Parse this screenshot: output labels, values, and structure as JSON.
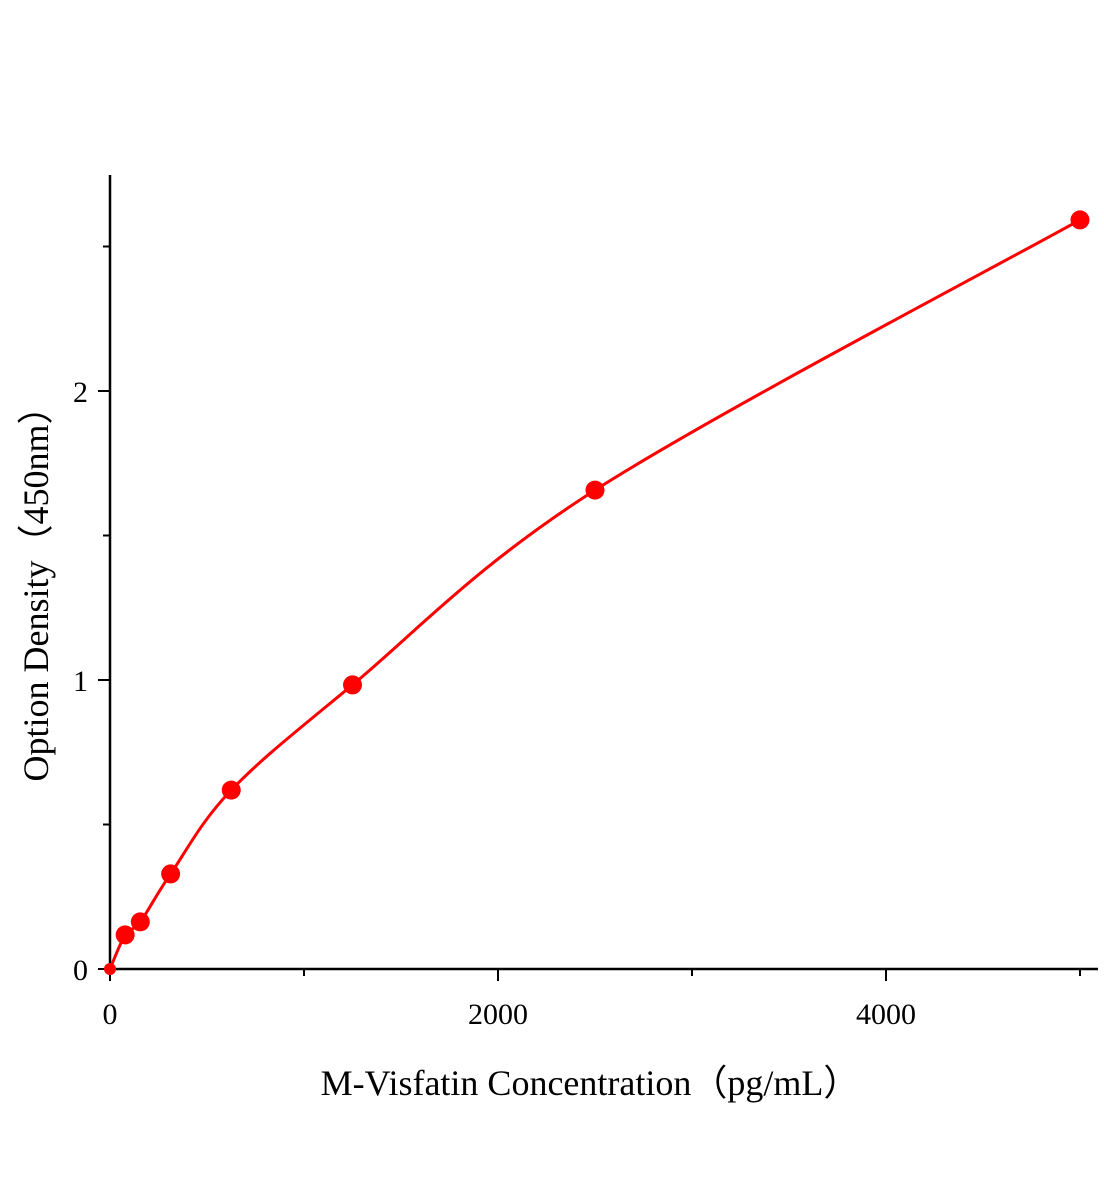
{
  "chart_data": {
    "type": "scatter",
    "title": "",
    "xlabel": "M-Visfatin Concentration（pg/mL）",
    "ylabel": "Option Density（450nm）",
    "xlim": [
      0,
      5100
    ],
    "ylim": [
      0,
      2.75
    ],
    "x_ticks": [
      "0",
      "2000",
      "4000"
    ],
    "x_tick_values": [
      0,
      2000,
      4000
    ],
    "x_minor_ticks": [
      1000,
      3000,
      5000
    ],
    "y_ticks": [
      "0",
      "1",
      "2"
    ],
    "y_tick_values": [
      0,
      1,
      2
    ],
    "y_minor_ticks": [
      0.5,
      1.5,
      2.5
    ],
    "grid": false,
    "color": "#ff0000",
    "series": [
      {
        "x": [
          0,
          78.125,
          156.25,
          312.5,
          625,
          1250,
          2500,
          5000
        ],
        "y": [
          0.0,
          0.118,
          0.163,
          0.329,
          0.619,
          0.983,
          1.657,
          2.592
        ],
        "fit_curve": true
      }
    ]
  }
}
